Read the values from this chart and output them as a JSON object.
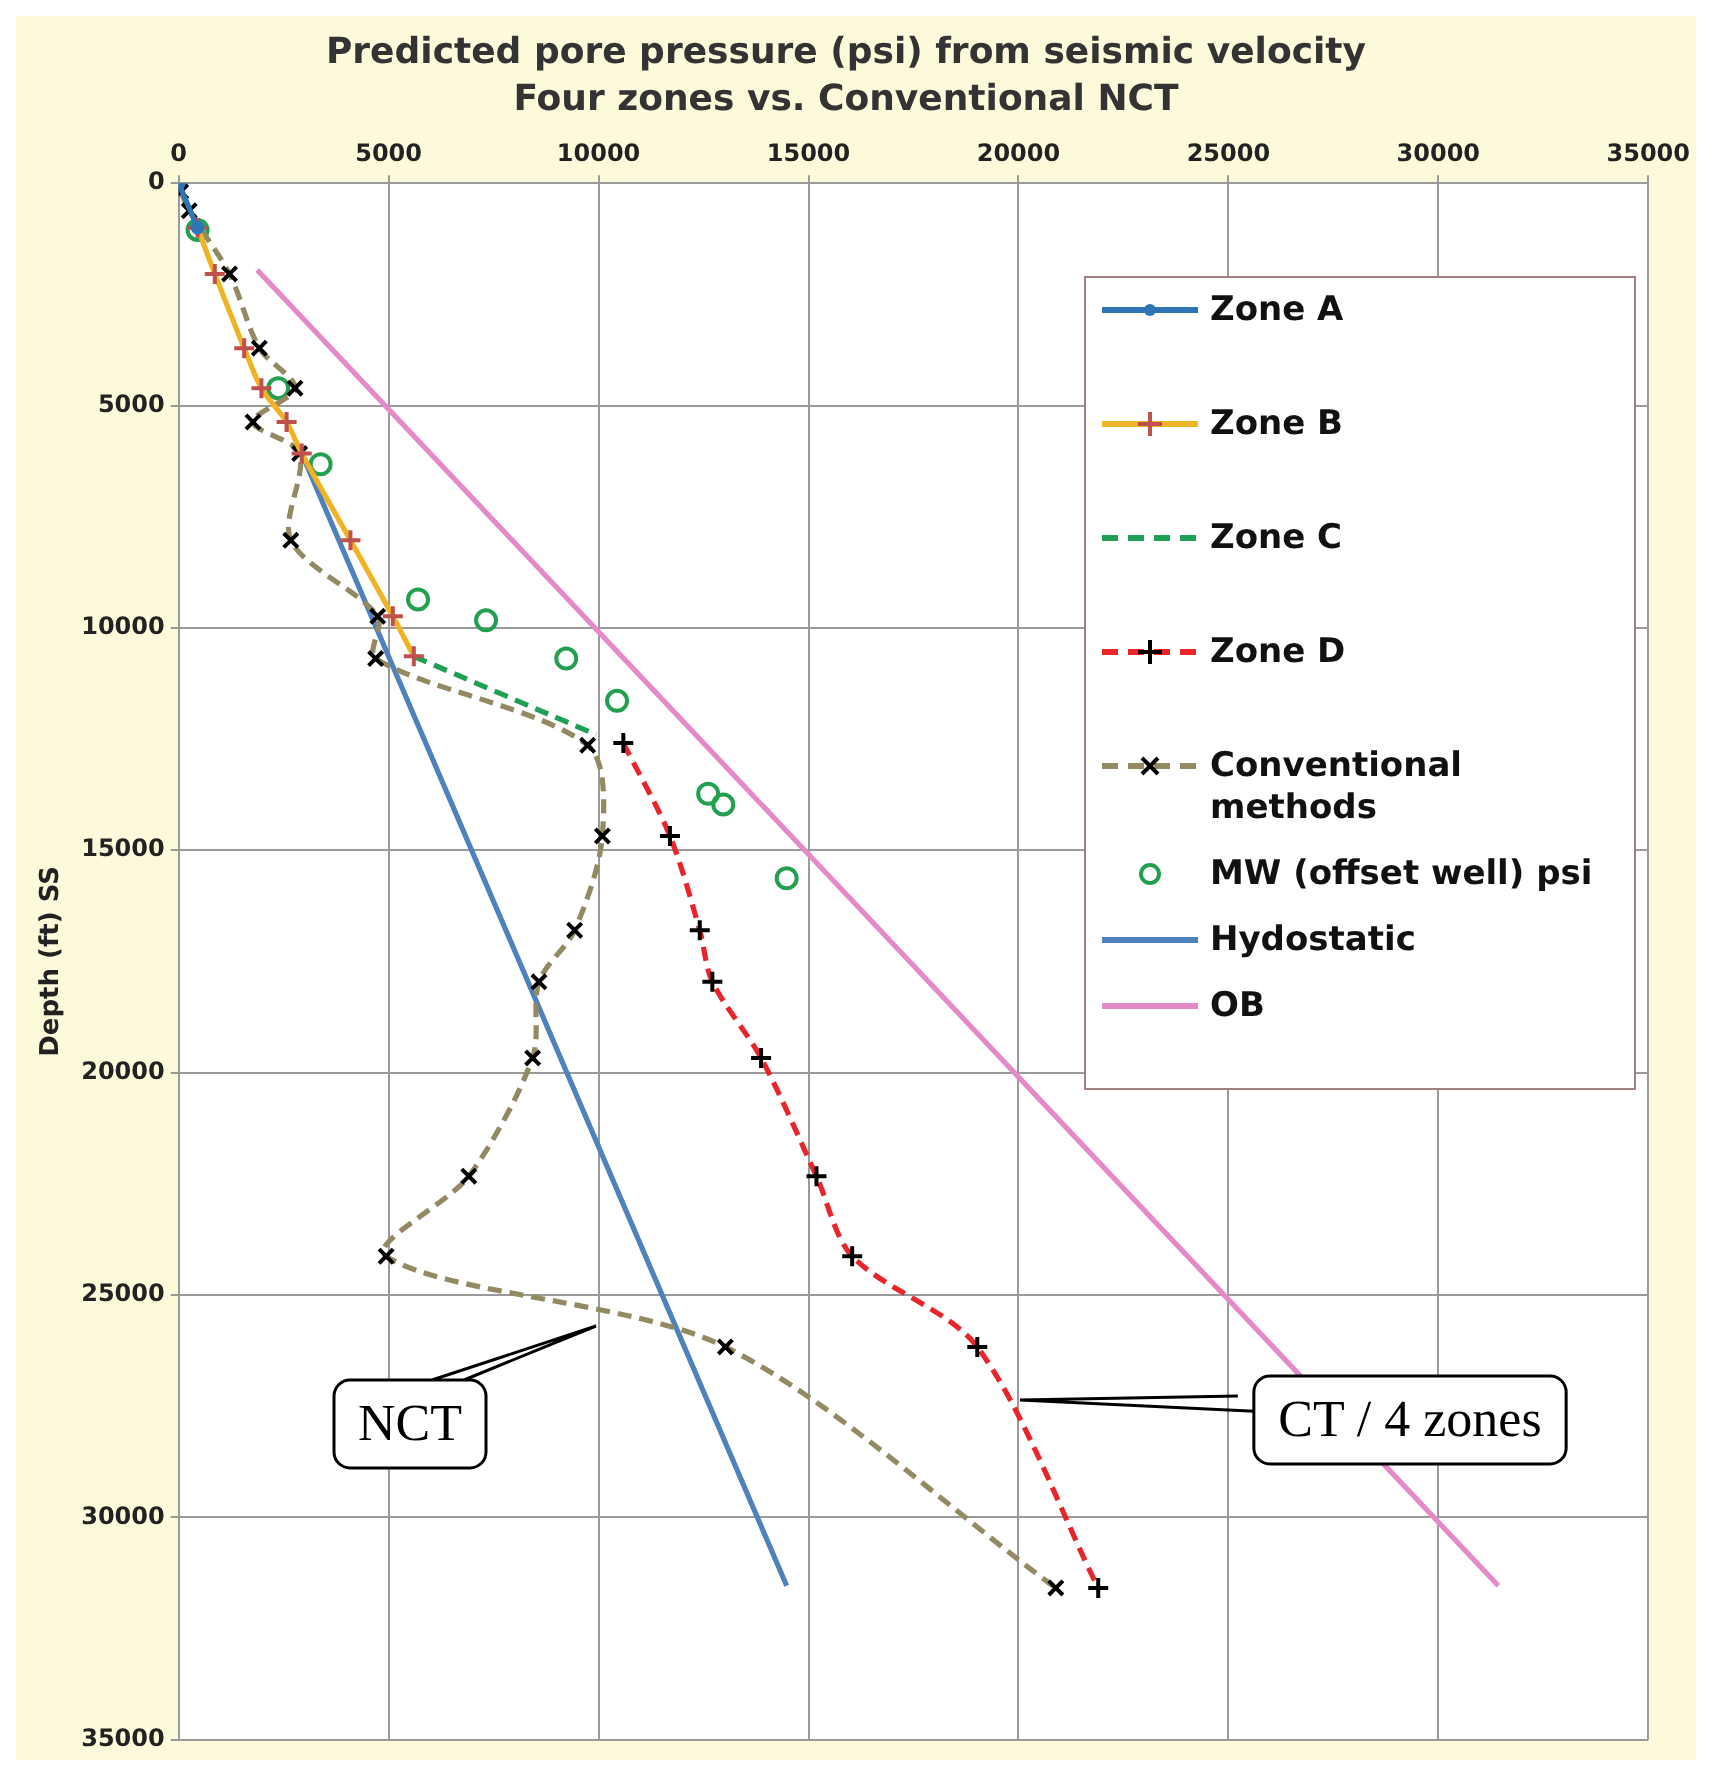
{
  "chart_data": {
    "type": "line",
    "title": "Predicted pore pressure (psi) from seismic velocity",
    "subtitle": "Four zones vs. Conventional NCT",
    "ylabel": "Depth (ft) SS",
    "xlim": [
      0,
      35000
    ],
    "xticks": [
      0,
      5000,
      10000,
      15000,
      20000,
      25000,
      30000,
      35000
    ],
    "ylim": [
      35000,
      0
    ],
    "yticks": [
      0,
      5000,
      10000,
      15000,
      20000,
      25000,
      30000,
      35000
    ],
    "grid": true,
    "legend": "top right",
    "series": [
      {
        "name": "Zone A",
        "color": "#2e75b6",
        "marker": "circle",
        "line_style": "solid",
        "x": [
          0,
          450
        ],
        "values": [
          0,
          1000
        ]
      },
      {
        "name": "Zone B",
        "color": "#f0b323",
        "marker": "cross",
        "line_style": "solid",
        "x": [
          450,
          860,
          1560,
          1970,
          2570,
          2930,
          4090,
          5100,
          5600
        ],
        "values": [
          1000,
          2040,
          3710,
          4610,
          5370,
          6080,
          8030,
          9740,
          10640
        ]
      },
      {
        "name": "Zone C",
        "color": "#1fa055",
        "marker": "none",
        "line_style": "dashed",
        "x": [
          5600,
          9940
        ],
        "values": [
          10640,
          12400
        ]
      },
      {
        "name": "Zone D",
        "color": "#e8252a",
        "marker": "cross",
        "line_style": "dashed",
        "x": [
          10590,
          11700,
          12410,
          12710,
          13870,
          15190,
          16040,
          19020,
          21900
        ],
        "values": [
          12590,
          14680,
          16800,
          17960,
          19670,
          22330,
          24130,
          26170,
          31590
        ]
      },
      {
        "name": "Conventional methods",
        "color": "#938a63",
        "marker": "x",
        "line_style": "dashed",
        "x": [
          50,
          250,
          1210,
          1920,
          2770,
          1770,
          2880,
          2670,
          4740,
          4690,
          9740,
          10090,
          9430,
          8580,
          8430,
          6910,
          4940,
          13020,
          20890
        ],
        "values": [
          190,
          620,
          2040,
          3710,
          4610,
          5370,
          6080,
          8030,
          9740,
          10690,
          12640,
          14680,
          16800,
          17960,
          19670,
          22330,
          24130,
          26170,
          31590
        ]
      },
      {
        "name": "MW (offset well) psi",
        "type": "scatter",
        "color": "#22a050",
        "marker": "circle",
        "x": [
          450,
          2370,
          3380,
          5700,
          7320,
          9230,
          10440,
          12610,
          12970,
          14480
        ],
        "values": [
          1050,
          4610,
          6320,
          9360,
          9830,
          10690,
          11640,
          13730,
          13970,
          15630
        ]
      },
      {
        "name": "Hydostatic",
        "color": "#4f81bd",
        "marker": "none",
        "line_style": "solid",
        "x": [
          2930,
          14480
        ],
        "values": [
          6080,
          31540
        ]
      },
      {
        "name": "OB",
        "color": "#e58ac8",
        "marker": "none",
        "line_style": "solid",
        "x": [
          1870,
          31430
        ],
        "values": [
          1950,
          31540
        ]
      }
    ],
    "annotations": [
      "NCT",
      "CT / 4 zones"
    ]
  }
}
